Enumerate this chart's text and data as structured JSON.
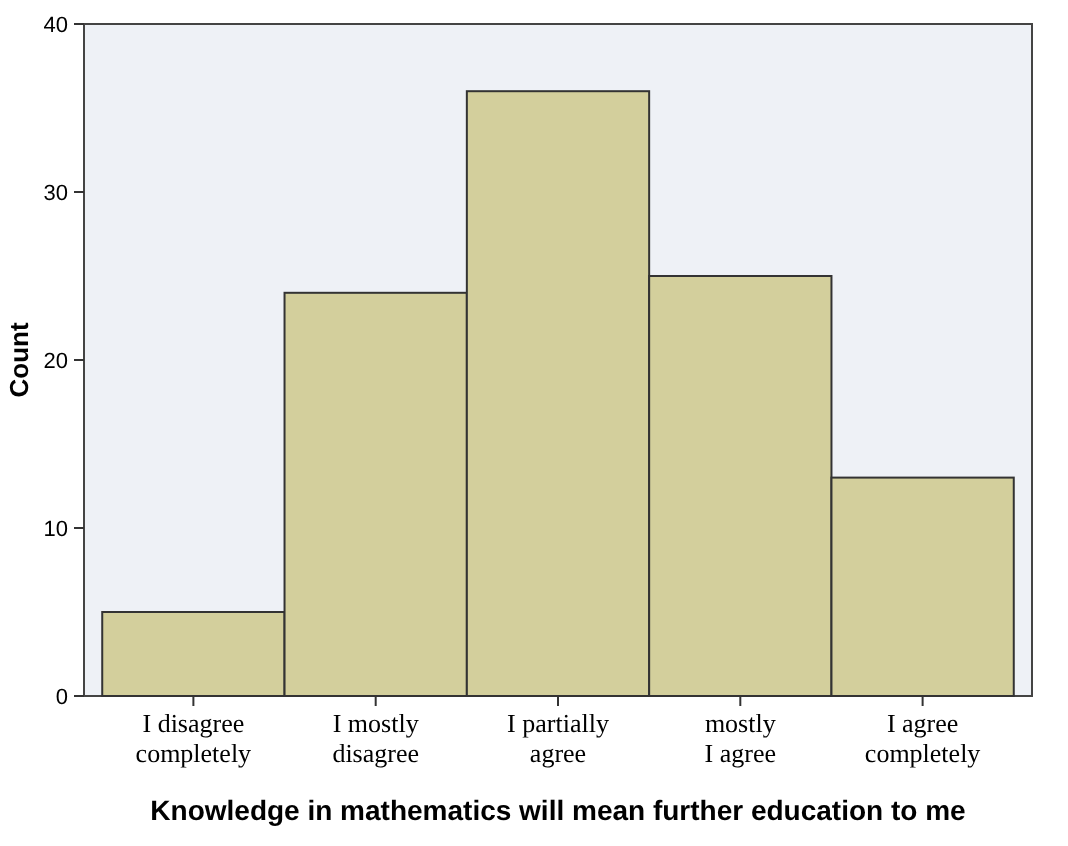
{
  "chart_data": {
    "type": "bar",
    "xlabel": "Knowledge in mathematics will mean further education to me",
    "ylabel": "Count",
    "categories": [
      "I disagree\ncompletely",
      "I mostly\ndisagree",
      "I partially\nagree",
      "mostly\nI agree",
      "I agree\ncompletely"
    ],
    "values": [
      5,
      24,
      36,
      25,
      13
    ],
    "color": "#d3cf9c",
    "ylim": [
      0,
      40
    ],
    "yticks": [
      0,
      10,
      20,
      30,
      40
    ],
    "grid": false
  }
}
